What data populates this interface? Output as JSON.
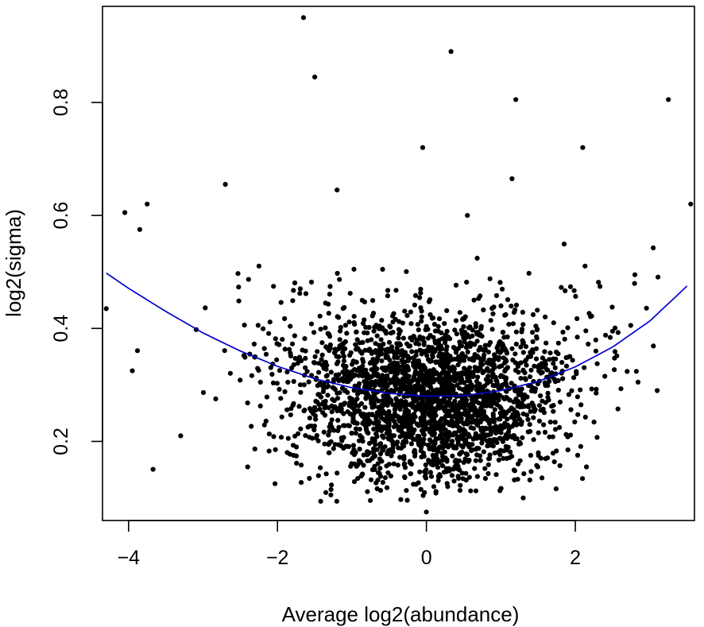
{
  "chart_data": {
    "type": "scatter",
    "title": "",
    "xlabel": "Average log2(abundance)",
    "ylabel": "log2(sigma)",
    "xlim": [
      -4.35,
      3.6
    ],
    "ylim": [
      0.06,
      0.97
    ],
    "x_ticks": [
      -4,
      -2,
      0,
      2
    ],
    "x_tick_labels": [
      "−4",
      "−2",
      "0",
      "2"
    ],
    "y_ticks": [
      0.2,
      0.4,
      0.6,
      0.8
    ],
    "y_tick_labels": [
      "0.2",
      "0.4",
      "0.6",
      "0.8"
    ],
    "grid": false,
    "legend": "none",
    "colors": {
      "points": "#000000",
      "trend": "#0000cc",
      "axes": "#000000"
    },
    "trend_curve": {
      "x": [
        -4.3,
        -4.0,
        -3.5,
        -3.0,
        -2.5,
        -2.0,
        -1.5,
        -1.0,
        -0.5,
        0.0,
        0.5,
        1.0,
        1.5,
        2.0,
        2.5,
        3.0,
        3.5
      ],
      "y": [
        0.498,
        0.471,
        0.43,
        0.392,
        0.36,
        0.333,
        0.311,
        0.295,
        0.285,
        0.28,
        0.281,
        0.29,
        0.306,
        0.332,
        0.367,
        0.413,
        0.475
      ]
    },
    "outliers": {
      "x": [
        -1.65,
        -1.5,
        0.33,
        1.2,
        3.25,
        2.1,
        -0.05,
        -4.3,
        -4.05,
        -2.7,
        -3.75,
        -3.85,
        3.55,
        1.15,
        -1.2,
        0.0,
        0.55,
        2.8,
        3.1,
        2.5,
        -3.3,
        -2.4,
        0.1,
        1.3,
        2.15,
        -3.95,
        1.9
      ],
      "y": [
        0.95,
        0.845,
        0.89,
        0.805,
        0.805,
        0.72,
        0.72,
        0.435,
        0.605,
        0.655,
        0.62,
        0.575,
        0.62,
        0.665,
        0.645,
        0.075,
        0.6,
        0.495,
        0.29,
        0.395,
        0.21,
        0.155,
        0.12,
        0.1,
        0.155,
        0.325,
        0.185
      ]
    },
    "cloud": {
      "point_count": 2600,
      "x_mean": 0.05,
      "x_sd": 0.95,
      "x_range": [
        -4.35,
        3.6
      ],
      "residual_sd": 0.07,
      "y_range": [
        0.09,
        0.67
      ]
    }
  }
}
